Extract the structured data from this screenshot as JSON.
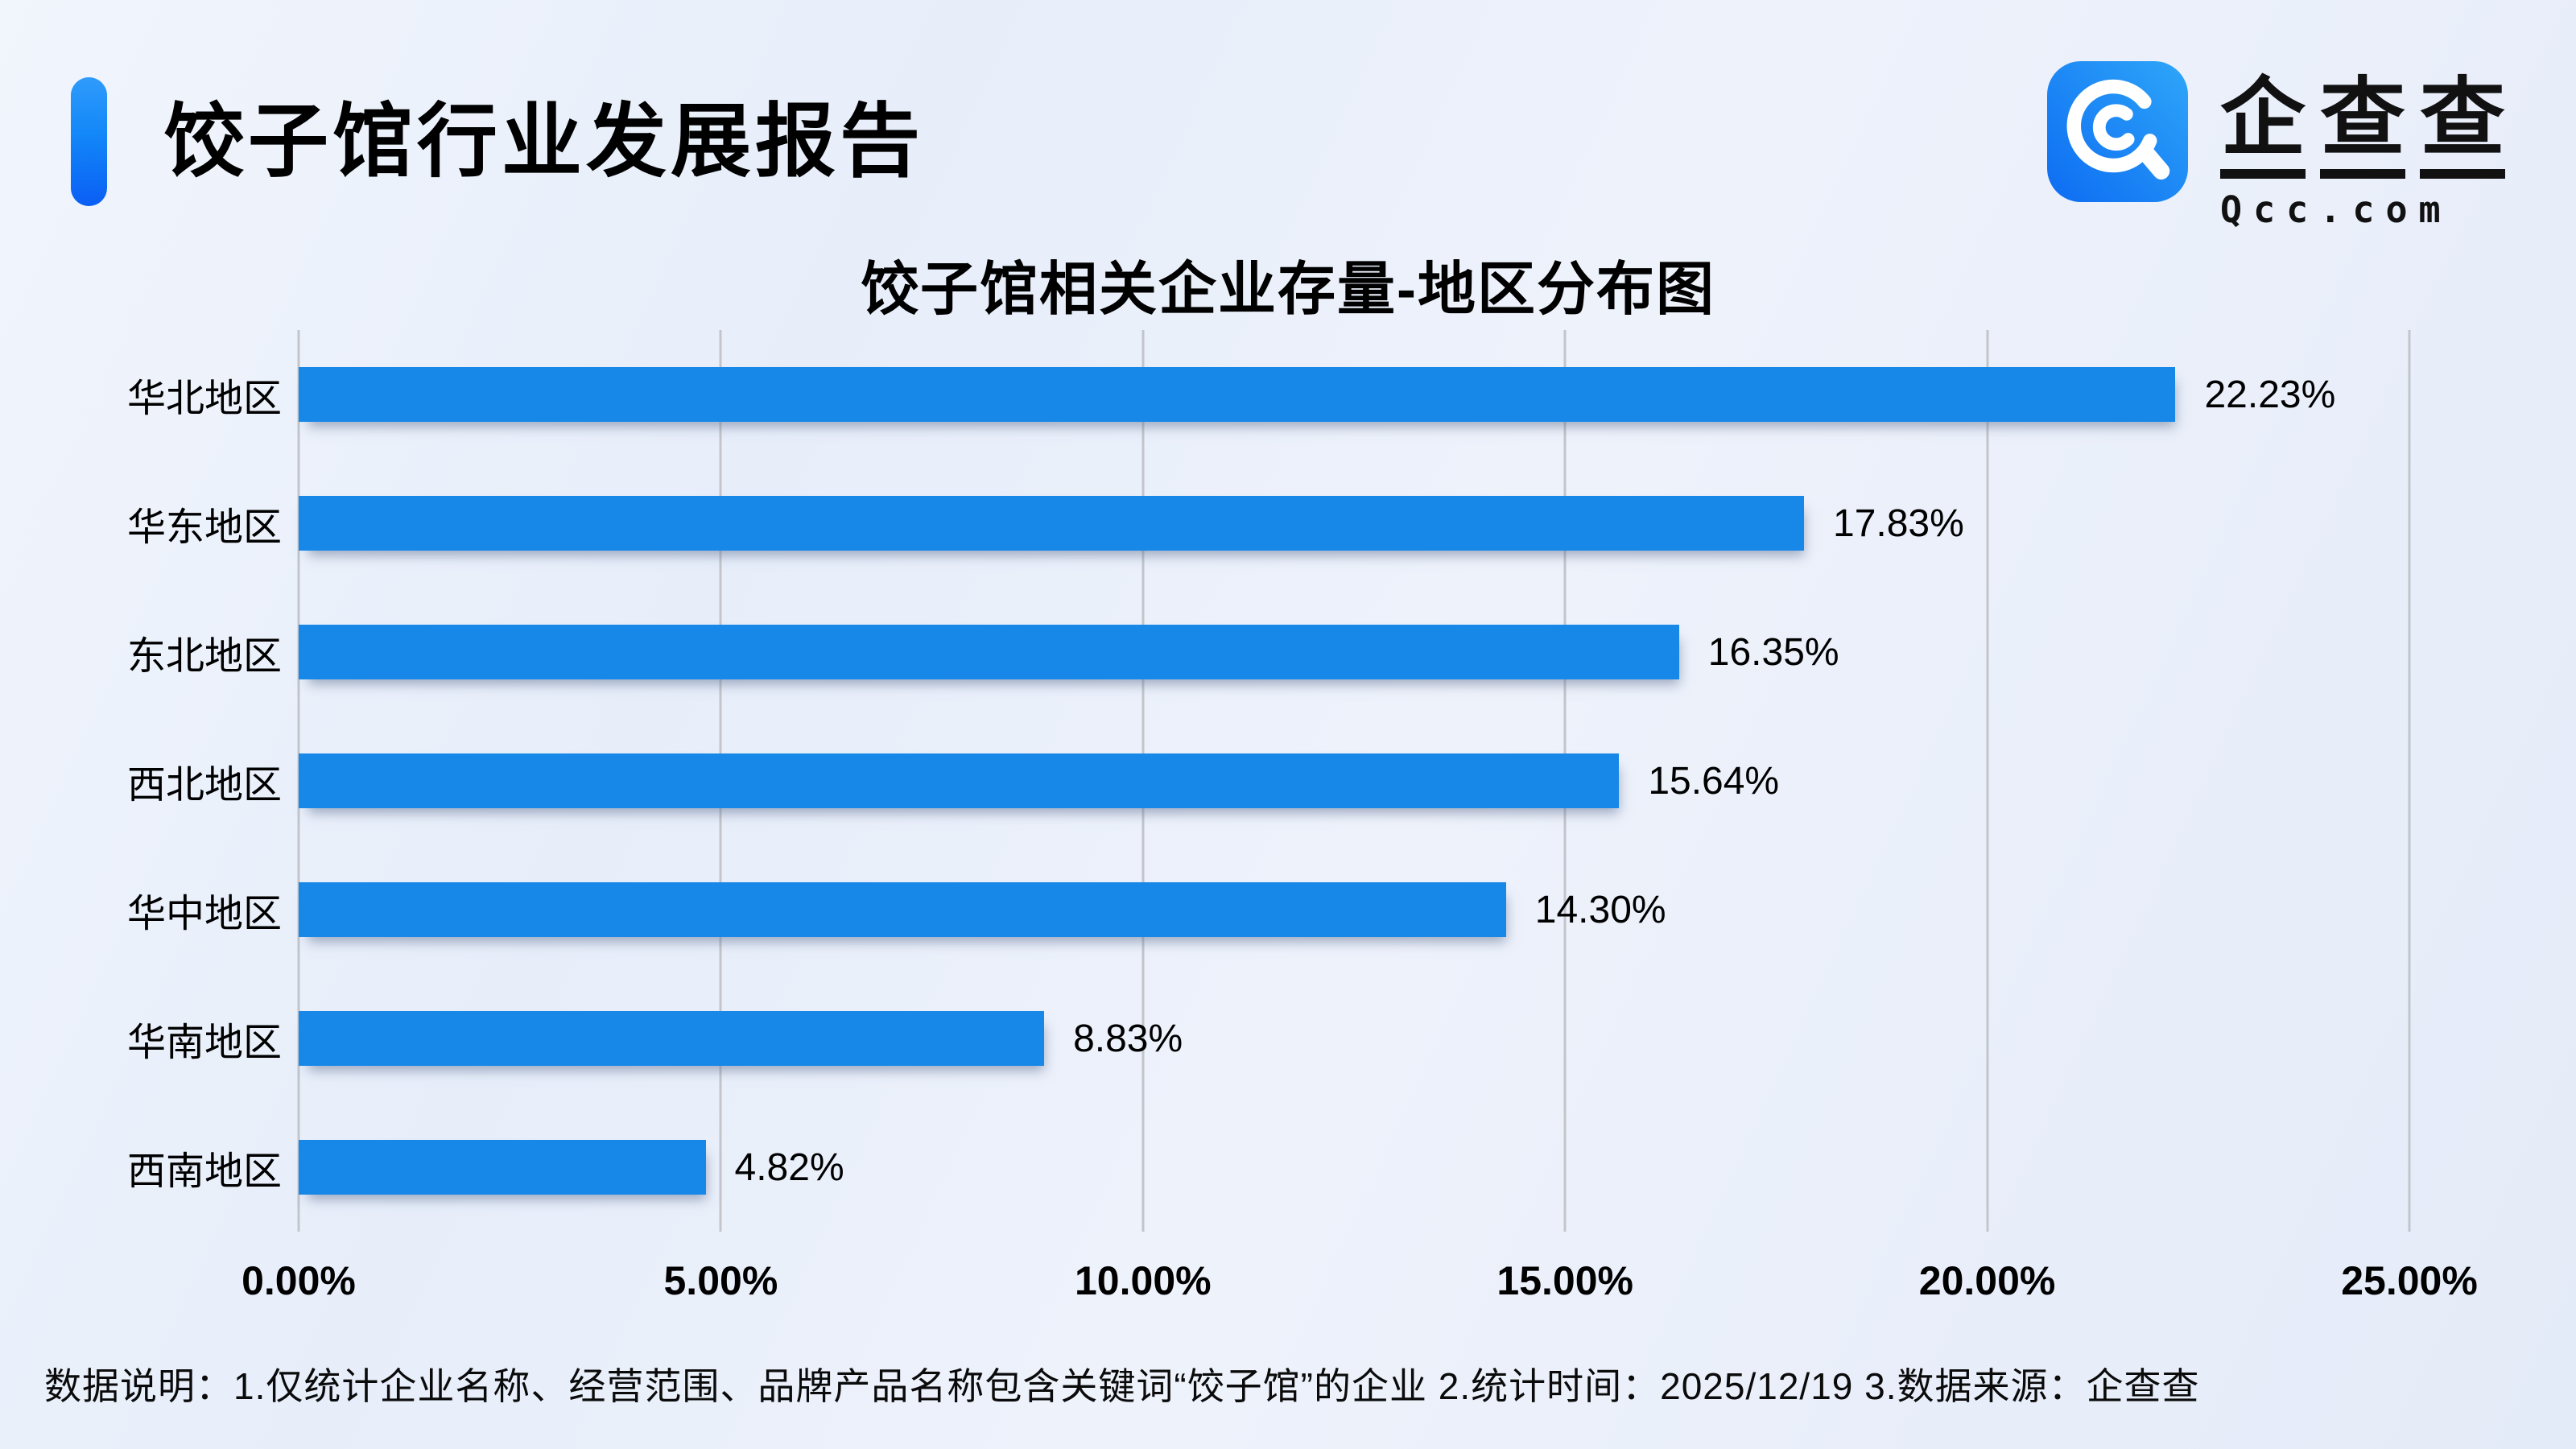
{
  "header": {
    "title": "饺子馆行业发展报告"
  },
  "logo": {
    "icon_name": "qcc-logo-icon",
    "brand_cn_chars": [
      "企",
      "查",
      "查"
    ],
    "brand_en": "Qcc.com",
    "icon_gradient": [
      "#0d6cf2",
      "#2ea6f9"
    ]
  },
  "chart_data": {
    "type": "bar",
    "orientation": "horizontal",
    "title": "饺子馆相关企业存量-地区分布图",
    "categories": [
      "华北地区",
      "华东地区",
      "东北地区",
      "西北地区",
      "华中地区",
      "华南地区",
      "西南地区"
    ],
    "values": [
      22.23,
      17.83,
      16.35,
      15.64,
      14.3,
      8.83,
      4.82
    ],
    "value_labels": [
      "22.23%",
      "17.83%",
      "16.35%",
      "15.64%",
      "14.30%",
      "8.83%",
      "4.82%"
    ],
    "xlim": [
      0,
      25
    ],
    "x_ticks": [
      "0.00%",
      "5.00%",
      "10.00%",
      "15.00%",
      "20.00%",
      "25.00%"
    ],
    "grid": true,
    "legend": "none",
    "bar_color": "#1787e8",
    "gridline_color": "#c3c5cb"
  },
  "footer": {
    "note": "数据说明：1.仅统计企业名称、经营范围、品牌产品名称包含关键词“饺子馆”的企业  2.统计时间：2025/12/19  3.数据来源：企查查"
  },
  "colors": {
    "accent_top": "#2f9bfb",
    "accent_bottom": "#0a5ef4",
    "background": "#eaf0fa",
    "text": "#000000"
  }
}
